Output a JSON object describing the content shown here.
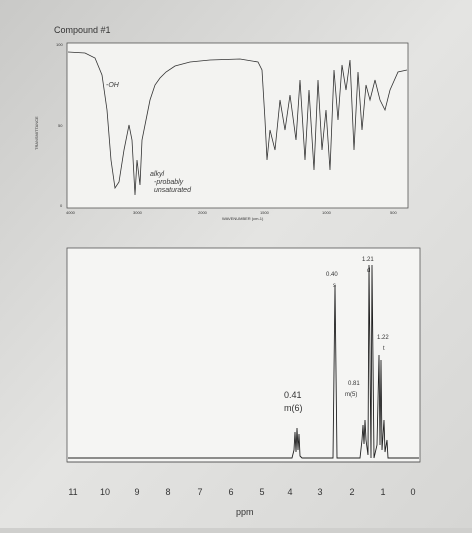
{
  "header": {
    "title": "Compound #1"
  },
  "ir_spectrum": {
    "y_axis_title": "TRANSMITTANCE",
    "x_axis_title": "WAVENUMBER (cm-1)",
    "y_ticks": [
      "100",
      "50",
      "0"
    ],
    "x_ticks": [
      "4000",
      "3000",
      "2000",
      "1500",
      "1000",
      "500"
    ],
    "annotations": [
      "-OH",
      "alkyl",
      "-probably",
      "unsaturated"
    ]
  },
  "nmr_spectrum": {
    "peak_labels": [
      {
        "integral": "1.21",
        "multiplicity": "d"
      },
      {
        "integral": "0.40",
        "multiplicity": "s"
      },
      {
        "integral": "1.22",
        "multiplicity": "t"
      },
      {
        "integral": "0.81",
        "multiplicity": "m(5)"
      },
      {
        "integral": "0.41",
        "multiplicity": "m(6)"
      }
    ],
    "x_ticks": [
      "11",
      "10",
      "9",
      "8",
      "7",
      "6",
      "5",
      "4",
      "3",
      "2",
      "1",
      "0"
    ],
    "x_axis_title": "ppm"
  }
}
